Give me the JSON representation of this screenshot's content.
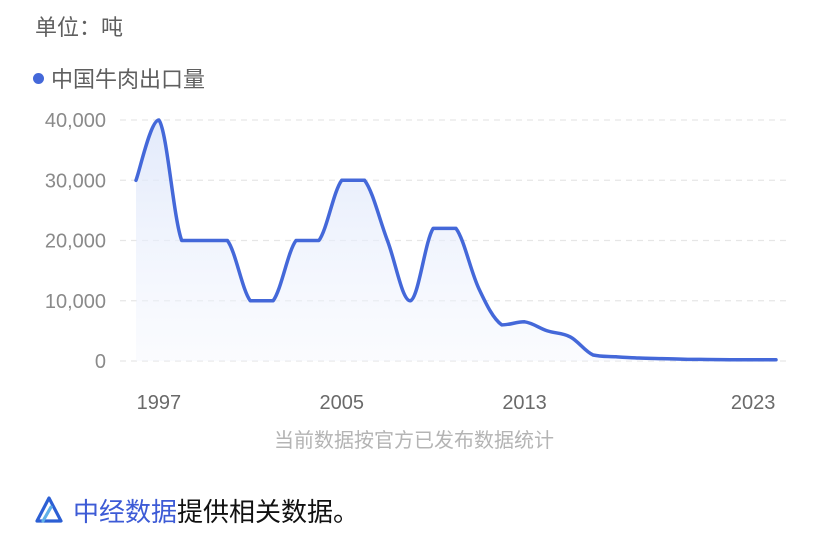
{
  "unit_label": "单位：吨",
  "source_note": "当前数据按官方已发布数据统计",
  "footer": {
    "brand": "中经数据",
    "text": "提供相关数据。"
  },
  "colors": {
    "line": "#4468d9",
    "fill": "#e9effc",
    "brand": "#3d5bd6"
  },
  "chart_data": {
    "type": "line",
    "x": [
      1996,
      1997,
      1998,
      1999,
      2000,
      2001,
      2002,
      2003,
      2004,
      2005,
      2006,
      2007,
      2008,
      2009,
      2010,
      2011,
      2012,
      2013,
      2014,
      2015,
      2016,
      2017,
      2018,
      2019,
      2020,
      2021,
      2022,
      2023,
      2024
    ],
    "series": [
      {
        "name": "中国牛肉出口量",
        "values": [
          30000,
          40000,
          20000,
          20000,
          20000,
          10000,
          10000,
          20000,
          20000,
          30000,
          30000,
          20000,
          10000,
          22000,
          22000,
          12000,
          6000,
          6500,
          5000,
          4000,
          1000,
          700,
          500,
          400,
          300,
          250,
          200,
          200,
          200
        ]
      }
    ],
    "xticks": [
      1997,
      2005,
      2013,
      2023
    ],
    "yticks": [
      0,
      10000,
      20000,
      30000,
      40000
    ],
    "ylim": [
      0,
      40000
    ],
    "xlim": [
      1996,
      2024
    ],
    "grid": "horizontal-dashed",
    "legend_position": "top-left"
  }
}
